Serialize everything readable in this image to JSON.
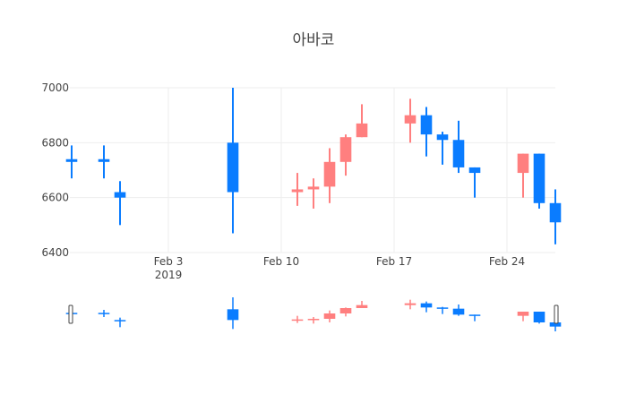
{
  "chart_data": {
    "type": "candlestick",
    "title": "아바코",
    "xlabel": "",
    "ylabel": "",
    "x_ticks": [
      {
        "date": "2019-02-03",
        "label": "Feb 3",
        "sublabel": "2019"
      },
      {
        "date": "2019-02-10",
        "label": "Feb 10",
        "sublabel": ""
      },
      {
        "date": "2019-02-17",
        "label": "Feb 17",
        "sublabel": ""
      },
      {
        "date": "2019-02-24",
        "label": "Feb 24",
        "sublabel": ""
      }
    ],
    "y_ticks": [
      6400,
      6600,
      6800,
      7000
    ],
    "xlim": [
      "2019-01-28",
      "2019-02-27"
    ],
    "ylim": [
      6400,
      7000
    ],
    "grid": true,
    "legend": false,
    "rangeslider": true,
    "colors": {
      "increasing": "#ff7f7f",
      "decreasing": "#0a7cff",
      "grid": "#eeeeee",
      "text": "#444444"
    },
    "candles": [
      {
        "date": "2019-01-28",
        "open": 6740,
        "high": 6790,
        "low": 6670,
        "close": 6730
      },
      {
        "date": "2019-01-30",
        "open": 6740,
        "high": 6790,
        "low": 6670,
        "close": 6730
      },
      {
        "date": "2019-01-31",
        "open": 6620,
        "high": 6660,
        "low": 6500,
        "close": 6600
      },
      {
        "date": "2019-02-07",
        "open": 6800,
        "high": 7000,
        "low": 6470,
        "close": 6620
      },
      {
        "date": "2019-02-11",
        "open": 6620,
        "high": 6690,
        "low": 6570,
        "close": 6630
      },
      {
        "date": "2019-02-12",
        "open": 6630,
        "high": 6670,
        "low": 6560,
        "close": 6640
      },
      {
        "date": "2019-02-13",
        "open": 6640,
        "high": 6780,
        "low": 6580,
        "close": 6730
      },
      {
        "date": "2019-02-14",
        "open": 6730,
        "high": 6830,
        "low": 6680,
        "close": 6820
      },
      {
        "date": "2019-02-15",
        "open": 6820,
        "high": 6940,
        "low": 6820,
        "close": 6870
      },
      {
        "date": "2019-02-18",
        "open": 6870,
        "high": 6960,
        "low": 6800,
        "close": 6900
      },
      {
        "date": "2019-02-19",
        "open": 6900,
        "high": 6930,
        "low": 6750,
        "close": 6830
      },
      {
        "date": "2019-02-20",
        "open": 6830,
        "high": 6840,
        "low": 6720,
        "close": 6810
      },
      {
        "date": "2019-02-21",
        "open": 6810,
        "high": 6880,
        "low": 6690,
        "close": 6710
      },
      {
        "date": "2019-02-22",
        "open": 6710,
        "high": 6710,
        "low": 6600,
        "close": 6690
      },
      {
        "date": "2019-02-25",
        "open": 6690,
        "high": 6760,
        "low": 6600,
        "close": 6760
      },
      {
        "date": "2019-02-26",
        "open": 6760,
        "high": 6760,
        "low": 6560,
        "close": 6580
      },
      {
        "date": "2019-02-27",
        "open": 6580,
        "high": 6630,
        "low": 6430,
        "close": 6510
      }
    ]
  }
}
